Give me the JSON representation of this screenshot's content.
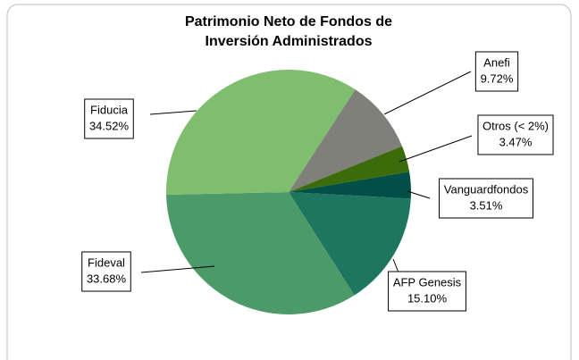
{
  "chart_data": {
    "type": "pie",
    "title": "Patrimonio Neto de Fondos de Inversión Administrados",
    "categories": [
      "Anefi",
      "Otros (< 2%)",
      "Vanguardfondos",
      "AFP Genesis",
      "Fideval",
      "Fiducia"
    ],
    "values": [
      9.72,
      3.47,
      3.51,
      15.1,
      33.68,
      34.52
    ],
    "value_labels": [
      "9.72%",
      "3.47%",
      "3.51%",
      "15.10%",
      "33.68%",
      "34.52%"
    ],
    "colors": [
      "#80807a",
      "#3b6b0a",
      "#024f48",
      "#1e7660",
      "#4b9a68",
      "#7fbe6e"
    ]
  }
}
